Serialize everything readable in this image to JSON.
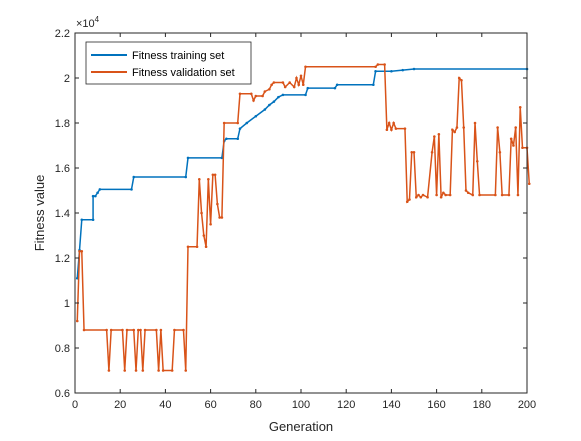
{
  "chart_data": {
    "type": "line",
    "xlabel": "Generation",
    "ylabel": "Fitness value",
    "y_multiplier_label": "×10",
    "y_multiplier_exp": "4",
    "xlim": [
      0,
      200
    ],
    "ylim": [
      0.6,
      2.2
    ],
    "xticks": [
      0,
      20,
      40,
      60,
      80,
      100,
      120,
      140,
      160,
      180,
      200
    ],
    "yticks": [
      0.6,
      0.8,
      1,
      1.2,
      1.4,
      1.6,
      1.8,
      2,
      2.2
    ],
    "ytick_labels": [
      "0.6",
      "0.8",
      "1",
      "1.2",
      "1.4",
      "1.6",
      "1.8",
      "2",
      "2.2"
    ],
    "grid": false,
    "legend_position": "top-left",
    "series": [
      {
        "name": "Fitness training set",
        "color": "#0072BD",
        "points": [
          [
            1,
            1.11
          ],
          [
            2,
            1.235
          ],
          [
            3,
            1.37
          ],
          [
            8,
            1.37
          ],
          [
            8,
            1.475
          ],
          [
            9,
            1.475
          ],
          [
            10,
            1.49
          ],
          [
            11,
            1.505
          ],
          [
            25,
            1.505
          ],
          [
            26,
            1.56
          ],
          [
            49,
            1.56
          ],
          [
            50,
            1.645
          ],
          [
            65,
            1.645
          ],
          [
            66,
            1.72
          ],
          [
            67,
            1.73
          ],
          [
            72,
            1.73
          ],
          [
            73,
            1.775
          ],
          [
            76,
            1.8
          ],
          [
            80,
            1.83
          ],
          [
            84,
            1.86
          ],
          [
            86,
            1.88
          ],
          [
            88,
            1.895
          ],
          [
            90,
            1.915
          ],
          [
            92,
            1.925
          ],
          [
            102,
            1.925
          ],
          [
            103,
            1.955
          ],
          [
            115,
            1.955
          ],
          [
            116,
            1.97
          ],
          [
            132,
            1.97
          ],
          [
            133,
            2.03
          ],
          [
            140,
            2.03
          ],
          [
            145,
            2.035
          ],
          [
            150,
            2.04
          ],
          [
            200,
            2.04
          ]
        ]
      },
      {
        "name": "Fitness validation set",
        "color": "#D95319",
        "points": [
          [
            1,
            0.92
          ],
          [
            2,
            1.23
          ],
          [
            3,
            1.23
          ],
          [
            4,
            0.88
          ],
          [
            14,
            0.88
          ],
          [
            15,
            0.7
          ],
          [
            16,
            0.88
          ],
          [
            21,
            0.88
          ],
          [
            22,
            0.7
          ],
          [
            23,
            0.88
          ],
          [
            26,
            0.88
          ],
          [
            27,
            0.7
          ],
          [
            28,
            0.88
          ],
          [
            29,
            0.88
          ],
          [
            30,
            0.7
          ],
          [
            31,
            0.88
          ],
          [
            36,
            0.88
          ],
          [
            37,
            0.7
          ],
          [
            38,
            0.88
          ],
          [
            39,
            0.7
          ],
          [
            43,
            0.7
          ],
          [
            44,
            0.88
          ],
          [
            48,
            0.88
          ],
          [
            49,
            0.7
          ],
          [
            50,
            1.25
          ],
          [
            54,
            1.25
          ],
          [
            55,
            1.55
          ],
          [
            56,
            1.4
          ],
          [
            57,
            1.3
          ],
          [
            58,
            1.25
          ],
          [
            59,
            1.55
          ],
          [
            60,
            1.35
          ],
          [
            61,
            1.57
          ],
          [
            62,
            1.57
          ],
          [
            63,
            1.44
          ],
          [
            64,
            1.38
          ],
          [
            65,
            1.38
          ],
          [
            66,
            1.8
          ],
          [
            72,
            1.8
          ],
          [
            73,
            1.93
          ],
          [
            78,
            1.93
          ],
          [
            79,
            1.9
          ],
          [
            80,
            1.92
          ],
          [
            83,
            1.92
          ],
          [
            84,
            1.94
          ],
          [
            86,
            1.95
          ],
          [
            87,
            1.97
          ],
          [
            88,
            1.98
          ],
          [
            92,
            1.98
          ],
          [
            93,
            1.96
          ],
          [
            95,
            1.98
          ],
          [
            97,
            1.96
          ],
          [
            98,
            2.0
          ],
          [
            99,
            1.97
          ],
          [
            100,
            2.01
          ],
          [
            101,
            1.97
          ],
          [
            102,
            2.05
          ],
          [
            133,
            2.05
          ],
          [
            134,
            2.06
          ],
          [
            137,
            2.06
          ],
          [
            138,
            1.77
          ],
          [
            139,
            1.8
          ],
          [
            140,
            1.77
          ],
          [
            141,
            1.8
          ],
          [
            142,
            1.775
          ],
          [
            146,
            1.775
          ],
          [
            147,
            1.45
          ],
          [
            148,
            1.46
          ],
          [
            149,
            1.67
          ],
          [
            150,
            1.67
          ],
          [
            151,
            1.47
          ],
          [
            152,
            1.48
          ],
          [
            153,
            1.47
          ],
          [
            154,
            1.48
          ],
          [
            156,
            1.47
          ],
          [
            158,
            1.67
          ],
          [
            159,
            1.74
          ],
          [
            160,
            1.48
          ],
          [
            161,
            1.75
          ],
          [
            162,
            1.47
          ],
          [
            163,
            1.49
          ],
          [
            164,
            1.48
          ],
          [
            166,
            1.48
          ],
          [
            167,
            1.77
          ],
          [
            168,
            1.76
          ],
          [
            169,
            1.78
          ],
          [
            170,
            2.0
          ],
          [
            171,
            1.99
          ],
          [
            172,
            1.78
          ],
          [
            173,
            1.5
          ],
          [
            174,
            1.49
          ],
          [
            176,
            1.48
          ],
          [
            177,
            1.8
          ],
          [
            178,
            1.63
          ],
          [
            179,
            1.48
          ],
          [
            186,
            1.48
          ],
          [
            187,
            1.78
          ],
          [
            188,
            1.67
          ],
          [
            189,
            1.48
          ],
          [
            192,
            1.48
          ],
          [
            193,
            1.73
          ],
          [
            194,
            1.7
          ],
          [
            195,
            1.78
          ],
          [
            196,
            1.48
          ],
          [
            197,
            1.87
          ],
          [
            198,
            1.69
          ],
          [
            200,
            1.69
          ],
          [
            201,
            1.53
          ]
        ]
      }
    ]
  }
}
